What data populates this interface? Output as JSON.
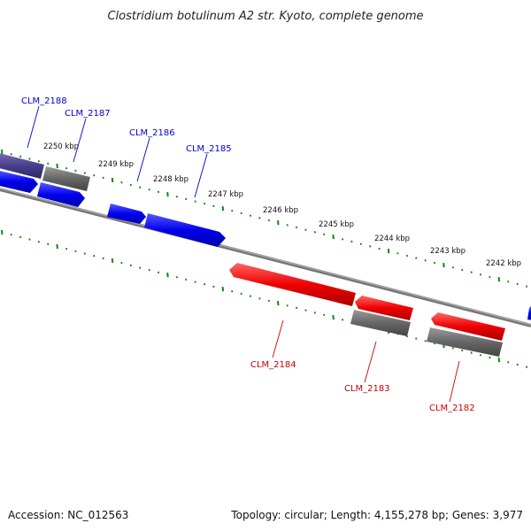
{
  "title": "Clostridium botulinum A2 str. Kyoto, complete genome",
  "footer": {
    "accession": "Accession: NC_012563",
    "summary": "Topology: circular; Length: 4,155,278 bp; Genes: 3,977"
  },
  "colors": {
    "forward_gene": "#0000ee",
    "reverse_gene": "#ee0000",
    "gray_gene": "#666666",
    "pseudo_gene": "#4a3f8c",
    "backbone": "#888888",
    "tick": "#118811",
    "label_forward": "#0000cc",
    "label_reverse": "#cc0000"
  },
  "scale_labels": [
    {
      "label": "2250 kbp",
      "kbp": 2250
    },
    {
      "label": "2249 kbp",
      "kbp": 2249
    },
    {
      "label": "2248 kbp",
      "kbp": 2248
    },
    {
      "label": "2247 kbp",
      "kbp": 2247
    },
    {
      "label": "2246 kbp",
      "kbp": 2246
    },
    {
      "label": "2245 kbp",
      "kbp": 2245
    },
    {
      "label": "2244 kbp",
      "kbp": 2244
    },
    {
      "label": "2243 kbp",
      "kbp": 2243
    },
    {
      "label": "2242 kbp",
      "kbp": 2242
    }
  ],
  "gene_labels": [
    {
      "name": "CLM_2188",
      "strand": "forward"
    },
    {
      "name": "CLM_2187",
      "strand": "forward"
    },
    {
      "name": "CLM_2186",
      "strand": "forward"
    },
    {
      "name": "CLM_2185",
      "strand": "forward"
    },
    {
      "name": "CLM_2184",
      "strand": "reverse"
    },
    {
      "name": "CLM_2183",
      "strand": "reverse"
    },
    {
      "name": "CLM_2182",
      "strand": "reverse"
    }
  ]
}
